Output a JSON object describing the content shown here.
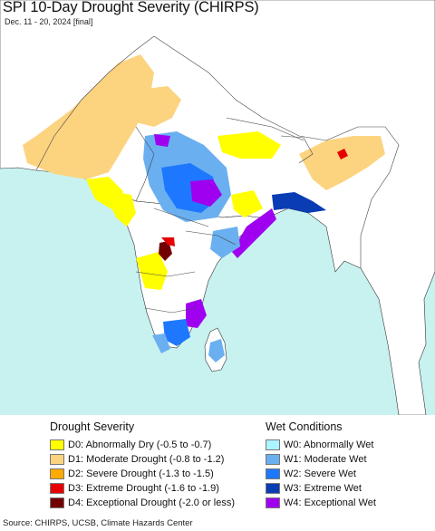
{
  "header": {
    "title": "SPI 10-Day Drought Severity (CHIRPS)",
    "subtitle": "Dec. 11 - 20, 2024 [final]"
  },
  "legend": {
    "drought": {
      "heading": "Drought Severity",
      "items": [
        {
          "label": "D0: Abnormally Dry (-0.5 to -0.7)",
          "color": "#ffff00"
        },
        {
          "label": "D1: Moderate Drought (-0.8 to -1.2)",
          "color": "#fcd37f"
        },
        {
          "label": "D2: Severe Drought (-1.3 to -1.5)",
          "color": "#ffaa00"
        },
        {
          "label": "D3: Extreme Drought (-1.6 to -1.9)",
          "color": "#e60000"
        },
        {
          "label": "D4: Exceptional Drought (-2.0 or less)",
          "color": "#730000"
        }
      ]
    },
    "wet": {
      "heading": "Wet Conditions",
      "items": [
        {
          "label": "W0: Abnormally Wet",
          "color": "#aaf5ff"
        },
        {
          "label": "W1: Moderate Wet",
          "color": "#6ab0f0"
        },
        {
          "label": "W2: Severe Wet",
          "color": "#1e78ff"
        },
        {
          "label": "W3: Extreme Wet",
          "color": "#0a3cb4"
        },
        {
          "label": "W4: Exceptional Wet",
          "color": "#a000f0"
        }
      ]
    }
  },
  "footer": {
    "source": "Source: CHIRPS, UCSB, Climate Hazards Center"
  }
}
